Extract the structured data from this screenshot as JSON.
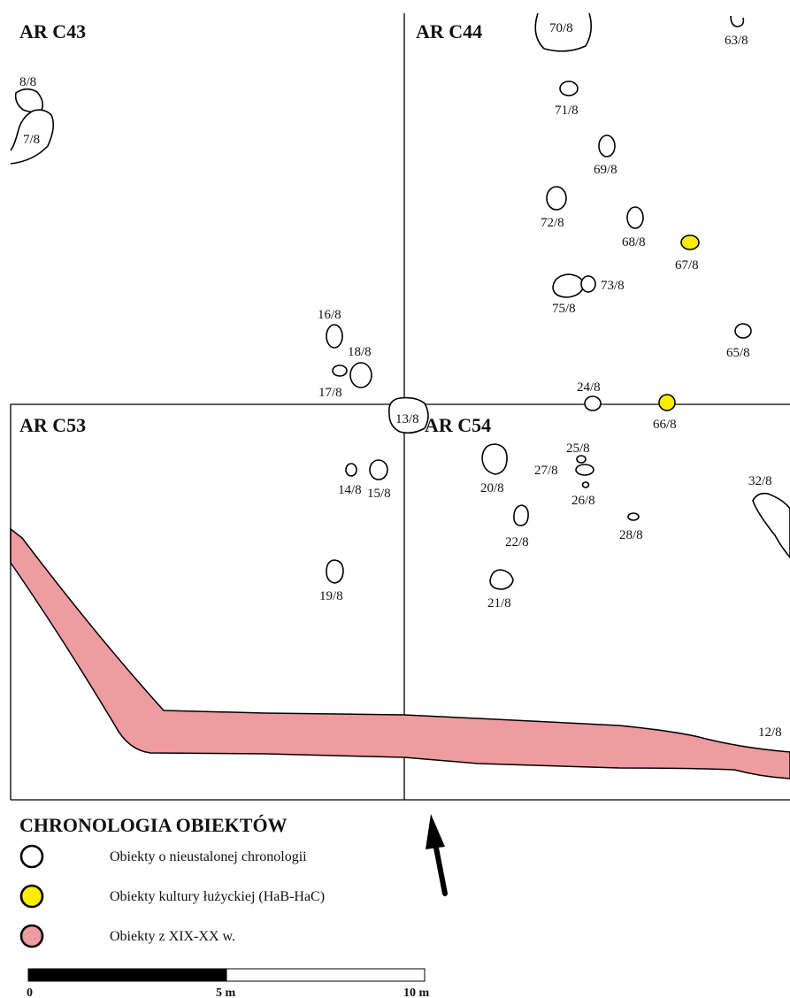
{
  "sectors": [
    "AR C43",
    "AR C44",
    "AR C53",
    "AR C54"
  ],
  "features": {
    "f70": "70/8",
    "f63": "63/8",
    "f8": "8/8",
    "f7": "7/8",
    "f71": "71/8",
    "f69": "69/8",
    "f72": "72/8",
    "f68": "68/8",
    "f67": "67/8",
    "f73": "73/8",
    "f75": "75/8",
    "f16": "16/8",
    "f18": "18/8",
    "f17": "17/8",
    "f65": "65/8",
    "f24": "24/8",
    "f13": "13/8",
    "f66": "66/8",
    "f25": "25/8",
    "f27": "27/8",
    "f20": "20/8",
    "f14": "14/8",
    "f15": "15/8",
    "f26": "26/8",
    "f32": "32/8",
    "f22": "22/8",
    "f28": "28/8",
    "f19": "19/8",
    "f21": "21/8",
    "f12": "12/8"
  },
  "legend": {
    "title": "CHRONOLOGIA OBIEKTÓW",
    "items": [
      {
        "label": "Obiekty o nieustalonej chronologii",
        "color": "#ffffff"
      },
      {
        "label": "Obiekty kultury łużyckiej (HaB-HaC)",
        "color": "#ffed00"
      },
      {
        "label": "Obiekty z XIX-XX w.",
        "color": "#ee9c9f"
      }
    ]
  },
  "scale_bar": {
    "labels": [
      "0",
      "5 m",
      "10 m"
    ]
  },
  "colors": {
    "undated": "#ffffff",
    "lusatian": "#ffed00",
    "modern": "#ee9c9f"
  },
  "north_arrow": "north-arrow-icon"
}
